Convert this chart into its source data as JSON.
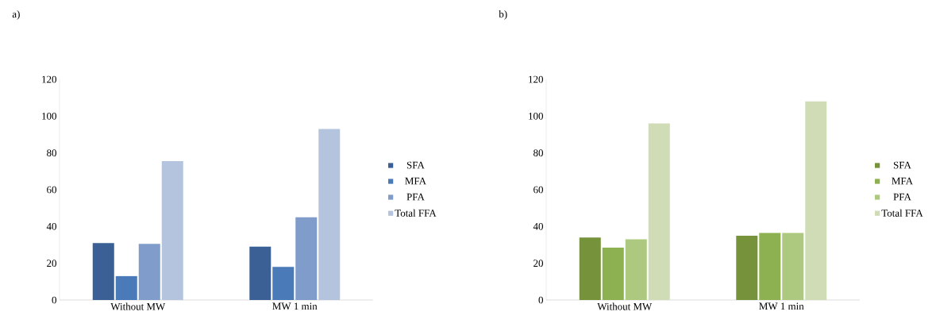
{
  "chart_data": [
    {
      "type": "bar",
      "title": "a)",
      "categories": [
        "Without MW",
        "MW 1 min"
      ],
      "ylim": [
        0,
        120
      ],
      "yticks": [
        0,
        20,
        40,
        60,
        80,
        100,
        120
      ],
      "legend": "right",
      "series": [
        {
          "name": "SFA",
          "color": "#3a6095",
          "values": [
            31,
            29
          ]
        },
        {
          "name": "MFA",
          "color": "#4a7ab8",
          "values": [
            13,
            18
          ]
        },
        {
          "name": "PFA",
          "color": "#7f9ccb",
          "values": [
            30.5,
            45
          ]
        },
        {
          "name": "Total FFA",
          "color": "#b4c4df",
          "values": [
            75.5,
            93
          ]
        }
      ]
    },
    {
      "type": "bar",
      "title": "b)",
      "categories": [
        "Without MW",
        "MW 1 min"
      ],
      "ylim": [
        0,
        120
      ],
      "yticks": [
        0,
        20,
        40,
        60,
        80,
        100,
        120
      ],
      "legend": "right",
      "series": [
        {
          "name": "SFA",
          "color": "#76933c",
          "values": [
            34,
            35
          ]
        },
        {
          "name": "MFA",
          "color": "#8db150",
          "values": [
            28.5,
            36.5
          ]
        },
        {
          "name": "PFA",
          "color": "#adc97f",
          "values": [
            33,
            36.5
          ]
        },
        {
          "name": "Total FFA",
          "color": "#cfdcb5",
          "values": [
            96,
            108
          ]
        }
      ]
    }
  ]
}
